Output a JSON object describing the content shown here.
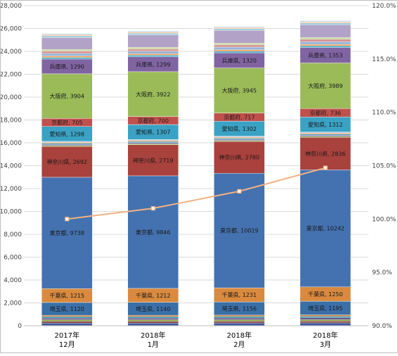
{
  "chart_data": {
    "type": "bar",
    "stacked": true,
    "categories": [
      {
        "line1": "2017年",
        "line2": "12月"
      },
      {
        "line1": "2018年",
        "line2": "1月"
      },
      {
        "line1": "2018年",
        "line2": "2月"
      },
      {
        "line1": "2018年",
        "line2": "3月"
      }
    ],
    "ylim": [
      0,
      28000
    ],
    "yticks": [
      "0",
      "2,000",
      "4,000",
      "6,000",
      "8,000",
      "10,000",
      "12,000",
      "14,000",
      "16,000",
      "18,000",
      "20,000",
      "22,000",
      "24,000",
      "26,000",
      "28,000"
    ],
    "y2lim": [
      90.0,
      120.0
    ],
    "y2ticks": [
      "90.0%",
      "95.0%",
      "100.0%",
      "105.0%",
      "110.0%",
      "115.0%",
      "120.0%"
    ],
    "grid": true,
    "series": [
      {
        "name": "",
        "color": "#3d5a99",
        "values": [
          240,
          240,
          245,
          250
        ]
      },
      {
        "name": "",
        "color": "#8b3a3a",
        "values": [
          150,
          150,
          152,
          155
        ]
      },
      {
        "name": "",
        "color": "#7c9a3c",
        "values": [
          140,
          140,
          142,
          145
        ]
      },
      {
        "name": "",
        "color": "#5f4a8b",
        "values": [
          135,
          135,
          137,
          140
        ]
      },
      {
        "name": "",
        "color": "#2f8fa6",
        "values": [
          130,
          130,
          132,
          135
        ]
      },
      {
        "name": "",
        "color": "#c8782a",
        "values": [
          120,
          120,
          122,
          125
        ]
      },
      {
        "name": "埼玉県",
        "color": "#3a6fa8",
        "values": [
          1120,
          1140,
          1156,
          1195
        ]
      },
      {
        "name": "千葉県",
        "color": "#d98a3e",
        "values": [
          1215,
          1212,
          1231,
          1250
        ]
      },
      {
        "name": "東京都",
        "color": "#4472b0",
        "values": [
          9738,
          9846,
          10019,
          10242
        ]
      },
      {
        "name": "神奈川県",
        "color": "#a9413d",
        "values": [
          2692,
          2719,
          2780,
          2836
        ]
      },
      {
        "name": "",
        "color": "#8aab4a",
        "values": [
          90,
          92,
          94,
          95
        ]
      },
      {
        "name": "",
        "color": "#7a63a8",
        "values": [
          90,
          92,
          94,
          95
        ]
      },
      {
        "name": "",
        "color": "#31a0bd",
        "values": [
          90,
          92,
          94,
          95
        ]
      },
      {
        "name": "",
        "color": "#e8994a",
        "values": [
          90,
          92,
          94,
          95
        ]
      },
      {
        "name": "",
        "color": "#b7c7e6",
        "values": [
          90,
          92,
          94,
          95
        ]
      },
      {
        "name": "愛知県",
        "color": "#3aa2c4",
        "values": [
          1298,
          1307,
          1302,
          1312
        ]
      },
      {
        "name": "京都府",
        "color": "#c0504d",
        "values": [
          705,
          700,
          717,
          736
        ]
      },
      {
        "name": "大阪府",
        "color": "#9bbb59",
        "values": [
          3904,
          3922,
          3945,
          3989
        ]
      },
      {
        "name": "兵庫県",
        "color": "#8064a2",
        "values": [
          1290,
          1299,
          1320,
          1353
        ]
      },
      {
        "name": "",
        "color": "#4bacc6",
        "values": [
          150,
          150,
          152,
          155
        ]
      },
      {
        "name": "",
        "color": "#f79646",
        "values": [
          120,
          120,
          122,
          125
        ]
      },
      {
        "name": "",
        "color": "#95b3d7",
        "values": [
          220,
          220,
          225,
          230
        ]
      },
      {
        "name": "",
        "color": "#d99694",
        "values": [
          200,
          200,
          205,
          210
        ]
      },
      {
        "name": "",
        "color": "#c3d69b",
        "values": [
          150,
          150,
          152,
          155
        ]
      },
      {
        "name": "",
        "color": "#b2a2c7",
        "values": [
          1040,
          1080,
          1100,
          1120
        ]
      },
      {
        "name": "",
        "color": "#92cddc",
        "values": [
          150,
          150,
          150,
          150
        ]
      },
      {
        "name": "",
        "color": "#fac090",
        "values": [
          100,
          100,
          100,
          100
        ]
      },
      {
        "name": "",
        "color": "#c5d9f1",
        "values": [
          100,
          100,
          100,
          100
        ]
      }
    ],
    "line": {
      "name": "",
      "color": "#f4b183",
      "axis": "right",
      "values": [
        100.0,
        101.0,
        102.6,
        104.8
      ]
    }
  }
}
